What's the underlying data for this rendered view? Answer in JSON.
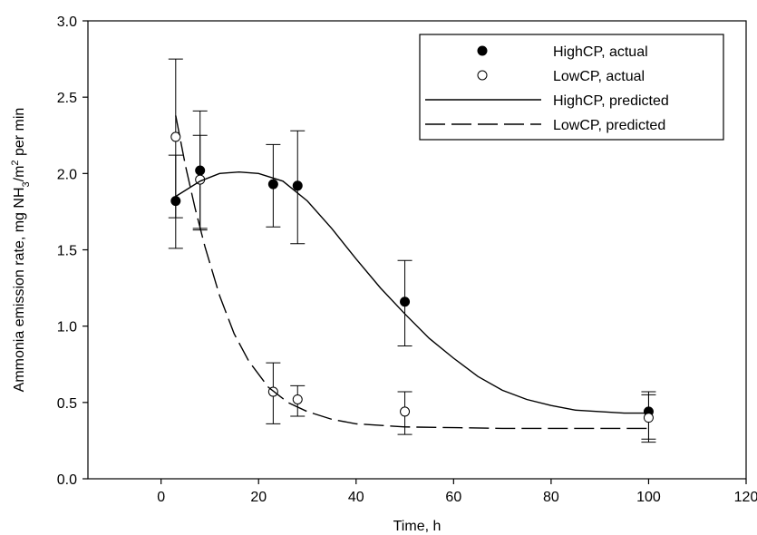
{
  "chart_data": {
    "type": "scatter",
    "xlabel": "Time, h",
    "ylabel": {
      "prefix": "Ammonia emission rate, mg NH",
      "sub": "3",
      "mid": "/m",
      "sup": "2",
      "suffix": " per min"
    },
    "xlim": [
      -15,
      120
    ],
    "ylim": [
      0,
      3
    ],
    "x_ticks": [
      0,
      20,
      40,
      60,
      80,
      100,
      120
    ],
    "y_ticks": [
      0.0,
      0.5,
      1.0,
      1.5,
      2.0,
      2.5,
      3.0
    ],
    "x_tick_labels": [
      "0",
      "20",
      "40",
      "60",
      "80",
      "100",
      "120"
    ],
    "y_tick_labels": [
      "0.0",
      "0.5",
      "1.0",
      "1.5",
      "2.0",
      "2.5",
      "3.0"
    ],
    "grid": false,
    "legend_position": "top-right",
    "series": [
      {
        "name": "HighCP, actual",
        "kind": "points",
        "marker": "filled-circle",
        "points": [
          {
            "x": 3,
            "y": 1.82,
            "lo": 1.51,
            "hi": 2.12
          },
          {
            "x": 8,
            "y": 2.02,
            "lo": 1.63,
            "hi": 2.41
          },
          {
            "x": 23,
            "y": 1.93,
            "lo": 1.65,
            "hi": 2.19
          },
          {
            "x": 28,
            "y": 1.92,
            "lo": 1.54,
            "hi": 2.28
          },
          {
            "x": 50,
            "y": 1.16,
            "lo": 0.87,
            "hi": 1.43
          },
          {
            "x": 100,
            "y": 0.44,
            "lo": 0.26,
            "hi": 0.57
          }
        ]
      },
      {
        "name": "LowCP, actual",
        "kind": "points",
        "marker": "open-circle",
        "points": [
          {
            "x": 3,
            "y": 2.24,
            "lo": 1.71,
            "hi": 2.75
          },
          {
            "x": 8,
            "y": 1.96,
            "lo": 1.64,
            "hi": 2.25
          },
          {
            "x": 23,
            "y": 0.57,
            "lo": 0.36,
            "hi": 0.76
          },
          {
            "x": 28,
            "y": 0.52,
            "lo": 0.41,
            "hi": 0.61
          },
          {
            "x": 50,
            "y": 0.44,
            "lo": 0.29,
            "hi": 0.57
          },
          {
            "x": 100,
            "y": 0.4,
            "lo": 0.24,
            "hi": 0.55
          }
        ]
      },
      {
        "name": "HighCP, predicted",
        "kind": "line",
        "dash": "solid",
        "points": [
          {
            "x": 3,
            "y": 1.85
          },
          {
            "x": 8,
            "y": 1.95
          },
          {
            "x": 12,
            "y": 2.0
          },
          {
            "x": 16,
            "y": 2.01
          },
          {
            "x": 20,
            "y": 2.0
          },
          {
            "x": 25,
            "y": 1.95
          },
          {
            "x": 30,
            "y": 1.82
          },
          {
            "x": 35,
            "y": 1.64
          },
          {
            "x": 40,
            "y": 1.44
          },
          {
            "x": 45,
            "y": 1.25
          },
          {
            "x": 50,
            "y": 1.08
          },
          {
            "x": 55,
            "y": 0.92
          },
          {
            "x": 60,
            "y": 0.79
          },
          {
            "x": 65,
            "y": 0.67
          },
          {
            "x": 70,
            "y": 0.58
          },
          {
            "x": 75,
            "y": 0.52
          },
          {
            "x": 80,
            "y": 0.48
          },
          {
            "x": 85,
            "y": 0.45
          },
          {
            "x": 90,
            "y": 0.44
          },
          {
            "x": 95,
            "y": 0.43
          },
          {
            "x": 100,
            "y": 0.43
          }
        ]
      },
      {
        "name": "LowCP, predicted",
        "kind": "line",
        "dash": "dashed",
        "points": [
          {
            "x": 3,
            "y": 2.38
          },
          {
            "x": 5,
            "y": 2.05
          },
          {
            "x": 7,
            "y": 1.77
          },
          {
            "x": 9,
            "y": 1.52
          },
          {
            "x": 12,
            "y": 1.2
          },
          {
            "x": 15,
            "y": 0.95
          },
          {
            "x": 18,
            "y": 0.77
          },
          {
            "x": 22,
            "y": 0.6
          },
          {
            "x": 26,
            "y": 0.5
          },
          {
            "x": 30,
            "y": 0.44
          },
          {
            "x": 35,
            "y": 0.39
          },
          {
            "x": 40,
            "y": 0.36
          },
          {
            "x": 50,
            "y": 0.34
          },
          {
            "x": 60,
            "y": 0.335
          },
          {
            "x": 70,
            "y": 0.33
          },
          {
            "x": 80,
            "y": 0.33
          },
          {
            "x": 90,
            "y": 0.33
          },
          {
            "x": 100,
            "y": 0.33
          }
        ]
      }
    ]
  }
}
